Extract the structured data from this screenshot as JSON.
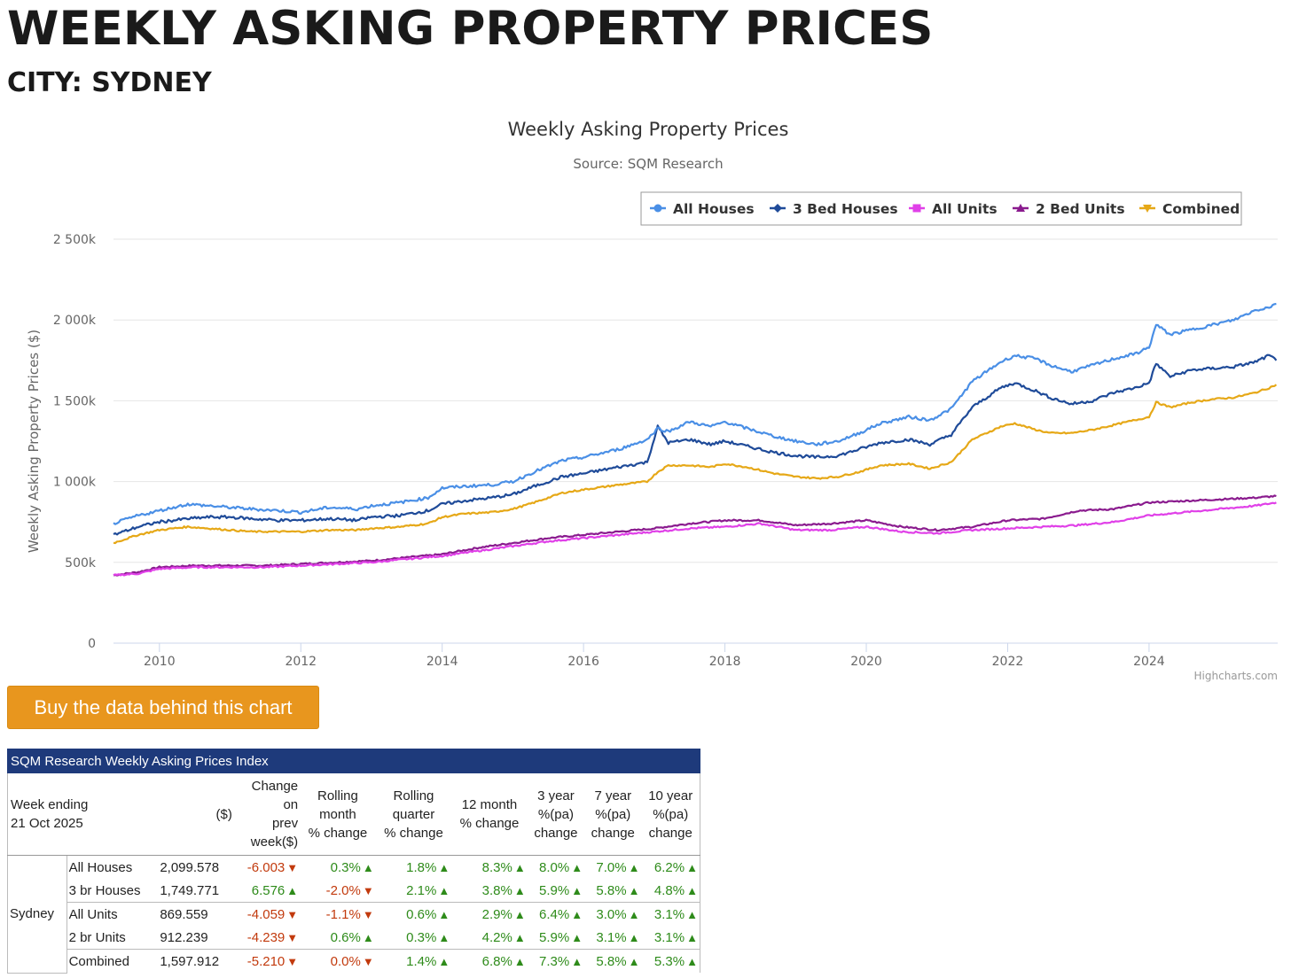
{
  "page": {
    "title": "WEEKLY ASKING PROPERTY PRICES",
    "subtitle": "CITY: SYDNEY",
    "buy_button": "Buy the data behind this chart"
  },
  "chart_data": {
    "type": "line",
    "title": "Weekly Asking Property Prices",
    "subtitle": "Source: SQM Research",
    "xlabel": "",
    "ylabel": "Weekly Asking Property Prices ($)",
    "ylim": [
      0,
      2500000
    ],
    "xlim": [
      2009.35,
      2025.82
    ],
    "y_ticks": [
      0,
      500000,
      1000000,
      1500000,
      2000000,
      2500000
    ],
    "y_tick_labels": [
      "0",
      "500k",
      "1 000k",
      "1 500k",
      "2 000k",
      "2 500k"
    ],
    "x_ticks": [
      2010,
      2012,
      2014,
      2016,
      2018,
      2020,
      2022,
      2024
    ],
    "x_tick_labels": [
      "2010",
      "2012",
      "2014",
      "2016",
      "2018",
      "2020",
      "2022",
      "2024"
    ],
    "grid": true,
    "legend_position": "top-right",
    "credits": "Highcharts.com",
    "series": [
      {
        "name": "All Houses",
        "color": "#4a8fe6",
        "marker": "circle",
        "x": [
          2009.35,
          2009.7,
          2010.0,
          2010.4,
          2010.7,
          2011.0,
          2011.3,
          2011.7,
          2012.0,
          2012.4,
          2012.8,
          2013.0,
          2013.4,
          2013.8,
          2014.0,
          2014.3,
          2014.7,
          2015.0,
          2015.3,
          2015.7,
          2016.0,
          2016.5,
          2016.9,
          2017.05,
          2017.2,
          2017.5,
          2017.8,
          2018.0,
          2018.3,
          2018.7,
          2019.0,
          2019.3,
          2019.6,
          2019.9,
          2020.2,
          2020.6,
          2020.9,
          2021.2,
          2021.5,
          2021.9,
          2022.1,
          2022.4,
          2022.6,
          2022.9,
          2023.2,
          2023.5,
          2023.8,
          2024.0,
          2024.1,
          2024.3,
          2024.6,
          2024.9,
          2025.2,
          2025.5,
          2025.7,
          2025.8
        ],
        "values": [
          740000,
          790000,
          820000,
          860000,
          850000,
          840000,
          830000,
          820000,
          810000,
          840000,
          830000,
          850000,
          870000,
          900000,
          960000,
          970000,
          980000,
          1000000,
          1060000,
          1130000,
          1150000,
          1200000,
          1260000,
          1330000,
          1310000,
          1370000,
          1340000,
          1370000,
          1330000,
          1280000,
          1250000,
          1230000,
          1250000,
          1300000,
          1360000,
          1400000,
          1380000,
          1450000,
          1620000,
          1740000,
          1780000,
          1760000,
          1720000,
          1680000,
          1720000,
          1760000,
          1790000,
          1830000,
          1970000,
          1910000,
          1940000,
          1970000,
          2000000,
          2060000,
          2080000,
          2100000
        ]
      },
      {
        "name": "3 Bed Houses",
        "color": "#1f4b99",
        "marker": "diamond",
        "x": [
          2009.35,
          2009.7,
          2010.0,
          2010.4,
          2010.7,
          2011.0,
          2011.3,
          2011.7,
          2012.0,
          2012.4,
          2012.8,
          2013.0,
          2013.4,
          2013.8,
          2014.0,
          2014.3,
          2014.7,
          2015.0,
          2015.3,
          2015.7,
          2016.0,
          2016.5,
          2016.9,
          2017.05,
          2017.2,
          2017.5,
          2017.8,
          2018.0,
          2018.3,
          2018.7,
          2019.0,
          2019.3,
          2019.6,
          2019.9,
          2020.2,
          2020.6,
          2020.9,
          2021.2,
          2021.5,
          2021.9,
          2022.1,
          2022.4,
          2022.6,
          2022.9,
          2023.2,
          2023.5,
          2023.8,
          2024.0,
          2024.1,
          2024.3,
          2024.6,
          2024.9,
          2025.2,
          2025.5,
          2025.7,
          2025.8
        ],
        "values": [
          670000,
          720000,
          750000,
          770000,
          780000,
          780000,
          770000,
          760000,
          760000,
          770000,
          760000,
          780000,
          790000,
          820000,
          860000,
          880000,
          900000,
          920000,
          970000,
          1030000,
          1050000,
          1090000,
          1120000,
          1340000,
          1240000,
          1260000,
          1230000,
          1250000,
          1220000,
          1180000,
          1160000,
          1150000,
          1160000,
          1200000,
          1240000,
          1260000,
          1230000,
          1290000,
          1460000,
          1580000,
          1610000,
          1560000,
          1520000,
          1480000,
          1500000,
          1550000,
          1580000,
          1610000,
          1730000,
          1650000,
          1690000,
          1700000,
          1710000,
          1740000,
          1780000,
          1750000
        ]
      },
      {
        "name": "All Units",
        "color": "#e040e8",
        "marker": "square",
        "x": [
          2009.35,
          2009.7,
          2010.0,
          2010.5,
          2011.0,
          2011.5,
          2012.0,
          2012.5,
          2013.0,
          2013.5,
          2014.0,
          2014.5,
          2015.0,
          2015.5,
          2016.0,
          2016.5,
          2017.0,
          2017.5,
          2018.0,
          2018.5,
          2019.0,
          2019.5,
          2020.0,
          2020.5,
          2021.0,
          2021.5,
          2022.0,
          2022.5,
          2023.0,
          2023.5,
          2024.0,
          2024.5,
          2025.0,
          2025.5,
          2025.8
        ],
        "values": [
          420000,
          430000,
          460000,
          470000,
          470000,
          470000,
          480000,
          490000,
          500000,
          520000,
          540000,
          570000,
          600000,
          630000,
          650000,
          670000,
          690000,
          710000,
          720000,
          740000,
          700000,
          700000,
          720000,
          690000,
          680000,
          700000,
          710000,
          720000,
          730000,
          750000,
          790000,
          810000,
          830000,
          850000,
          870000
        ]
      },
      {
        "name": "2 Bed Units",
        "color": "#8a1b8e",
        "marker": "triangle",
        "x": [
          2009.35,
          2009.7,
          2010.0,
          2010.5,
          2011.0,
          2011.5,
          2012.0,
          2012.5,
          2013.0,
          2013.5,
          2014.0,
          2014.5,
          2015.0,
          2015.5,
          2016.0,
          2016.5,
          2017.0,
          2017.5,
          2018.0,
          2018.5,
          2019.0,
          2019.5,
          2020.0,
          2020.5,
          2021.0,
          2021.5,
          2022.0,
          2022.5,
          2023.0,
          2023.5,
          2024.0,
          2024.5,
          2025.0,
          2025.5,
          2025.8
        ],
        "values": [
          420000,
          440000,
          470000,
          480000,
          480000,
          480000,
          490000,
          500000,
          510000,
          530000,
          550000,
          590000,
          620000,
          650000,
          670000,
          690000,
          710000,
          740000,
          760000,
          760000,
          730000,
          740000,
          760000,
          720000,
          700000,
          720000,
          760000,
          770000,
          820000,
          830000,
          870000,
          880000,
          890000,
          900000,
          910000
        ]
      },
      {
        "name": "Combined",
        "color": "#e6a817",
        "marker": "triangle-down",
        "x": [
          2009.35,
          2009.7,
          2010.0,
          2010.4,
          2010.7,
          2011.0,
          2011.3,
          2011.7,
          2012.0,
          2012.4,
          2012.8,
          2013.0,
          2013.4,
          2013.8,
          2014.0,
          2014.3,
          2014.7,
          2015.0,
          2015.3,
          2015.7,
          2016.0,
          2016.5,
          2016.9,
          2017.05,
          2017.2,
          2017.5,
          2017.8,
          2018.0,
          2018.3,
          2018.7,
          2019.0,
          2019.3,
          2019.6,
          2019.9,
          2020.2,
          2020.6,
          2020.9,
          2021.2,
          2021.5,
          2021.9,
          2022.1,
          2022.4,
          2022.6,
          2022.9,
          2023.2,
          2023.5,
          2023.8,
          2024.0,
          2024.1,
          2024.3,
          2024.6,
          2024.9,
          2025.2,
          2025.5,
          2025.7,
          2025.8
        ],
        "values": [
          620000,
          670000,
          700000,
          720000,
          710000,
          700000,
          690000,
          690000,
          690000,
          700000,
          700000,
          710000,
          720000,
          740000,
          780000,
          800000,
          810000,
          830000,
          870000,
          930000,
          950000,
          980000,
          1000000,
          1060000,
          1100000,
          1100000,
          1090000,
          1110000,
          1090000,
          1050000,
          1030000,
          1020000,
          1030000,
          1060000,
          1100000,
          1110000,
          1080000,
          1120000,
          1260000,
          1340000,
          1360000,
          1320000,
          1300000,
          1300000,
          1320000,
          1350000,
          1380000,
          1400000,
          1490000,
          1460000,
          1490000,
          1510000,
          1520000,
          1550000,
          1580000,
          1600000
        ]
      }
    ]
  },
  "table": {
    "caption": "SQM Research Weekly Asking Prices Index",
    "headers": [
      "Week ending\n21 Oct 2025",
      "($)",
      "Change\non\nprev\nweek($)",
      "Rolling\nmonth\n% change",
      "Rolling\nquarter\n% change",
      "12 month\n% change",
      "3 year\n%(pa)\nchange",
      "7 year\n%(pa)\nchange",
      "10 year\n%(pa)\nchange"
    ],
    "city": "Sydney",
    "rows": [
      {
        "label": "All Houses",
        "price": "2,099.578",
        "cells": [
          [
            "-6.003",
            "down"
          ],
          [
            "0.3%",
            "up"
          ],
          [
            "1.8%",
            "up"
          ],
          [
            "8.3%",
            "up"
          ],
          [
            "8.0%",
            "up"
          ],
          [
            "7.0%",
            "up"
          ],
          [
            "6.2%",
            "up"
          ]
        ]
      },
      {
        "label": "3 br Houses",
        "price": "1,749.771",
        "cells": [
          [
            "6.576",
            "up"
          ],
          [
            "-2.0%",
            "down"
          ],
          [
            "2.1%",
            "up"
          ],
          [
            "3.8%",
            "up"
          ],
          [
            "5.9%",
            "up"
          ],
          [
            "5.8%",
            "up"
          ],
          [
            "4.8%",
            "up"
          ]
        ]
      },
      {
        "label": "All Units",
        "price": "869.559",
        "cells": [
          [
            "-4.059",
            "down"
          ],
          [
            "-1.1%",
            "down"
          ],
          [
            "0.6%",
            "up"
          ],
          [
            "2.9%",
            "up"
          ],
          [
            "6.4%",
            "up"
          ],
          [
            "3.0%",
            "up"
          ],
          [
            "3.1%",
            "up"
          ]
        ]
      },
      {
        "label": "2 br Units",
        "price": "912.239",
        "cells": [
          [
            "-4.239",
            "down"
          ],
          [
            "0.6%",
            "up"
          ],
          [
            "0.3%",
            "up"
          ],
          [
            "4.2%",
            "up"
          ],
          [
            "5.9%",
            "up"
          ],
          [
            "3.1%",
            "up"
          ],
          [
            "3.1%",
            "up"
          ]
        ]
      },
      {
        "label": "Combined",
        "price": "1,597.912",
        "cells": [
          [
            "-5.210",
            "down"
          ],
          [
            "0.0%",
            "down"
          ],
          [
            "1.4%",
            "up"
          ],
          [
            "6.8%",
            "up"
          ],
          [
            "7.3%",
            "up"
          ],
          [
            "5.8%",
            "up"
          ],
          [
            "5.3%",
            "up"
          ]
        ]
      }
    ]
  }
}
